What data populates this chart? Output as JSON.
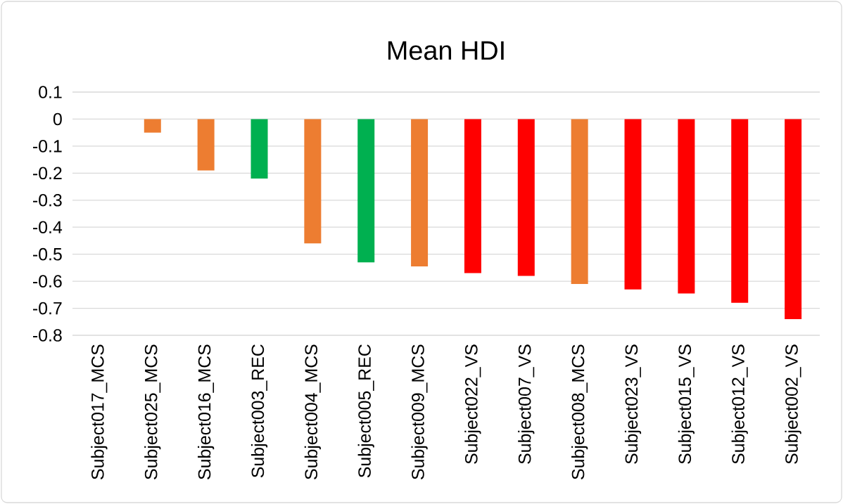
{
  "chart_data": {
    "type": "bar",
    "title": "Mean HDI",
    "categories": [
      "Subject017_MCS",
      "Subject025_MCS",
      "Subject016_MCS",
      "Subject003_REC",
      "Subject004_MCS",
      "Subject005_REC",
      "Subject009_MCS",
      "Subject022_VS",
      "Subject007_VS",
      "Subject008_MCS",
      "Subject023_VS",
      "Subject015_VS",
      "Subject012_VS",
      "Subject002_VS"
    ],
    "values": [
      0,
      -0.05,
      -0.19,
      -0.22,
      -0.46,
      -0.53,
      -0.545,
      -0.57,
      -0.58,
      -0.61,
      -0.63,
      -0.645,
      -0.68,
      -0.74
    ],
    "colors": [
      "#ed7d31",
      "#ed7d31",
      "#ed7d31",
      "#00b050",
      "#ed7d31",
      "#00b050",
      "#ed7d31",
      "#ff0000",
      "#ff0000",
      "#ed7d31",
      "#ff0000",
      "#ff0000",
      "#ff0000",
      "#ff0000"
    ],
    "ylim": [
      -0.8,
      0.1
    ],
    "yticks": [
      0.1,
      0,
      -0.1,
      -0.2,
      -0.3,
      -0.4,
      -0.5,
      -0.6,
      -0.7,
      -0.8
    ],
    "grid": "y"
  }
}
